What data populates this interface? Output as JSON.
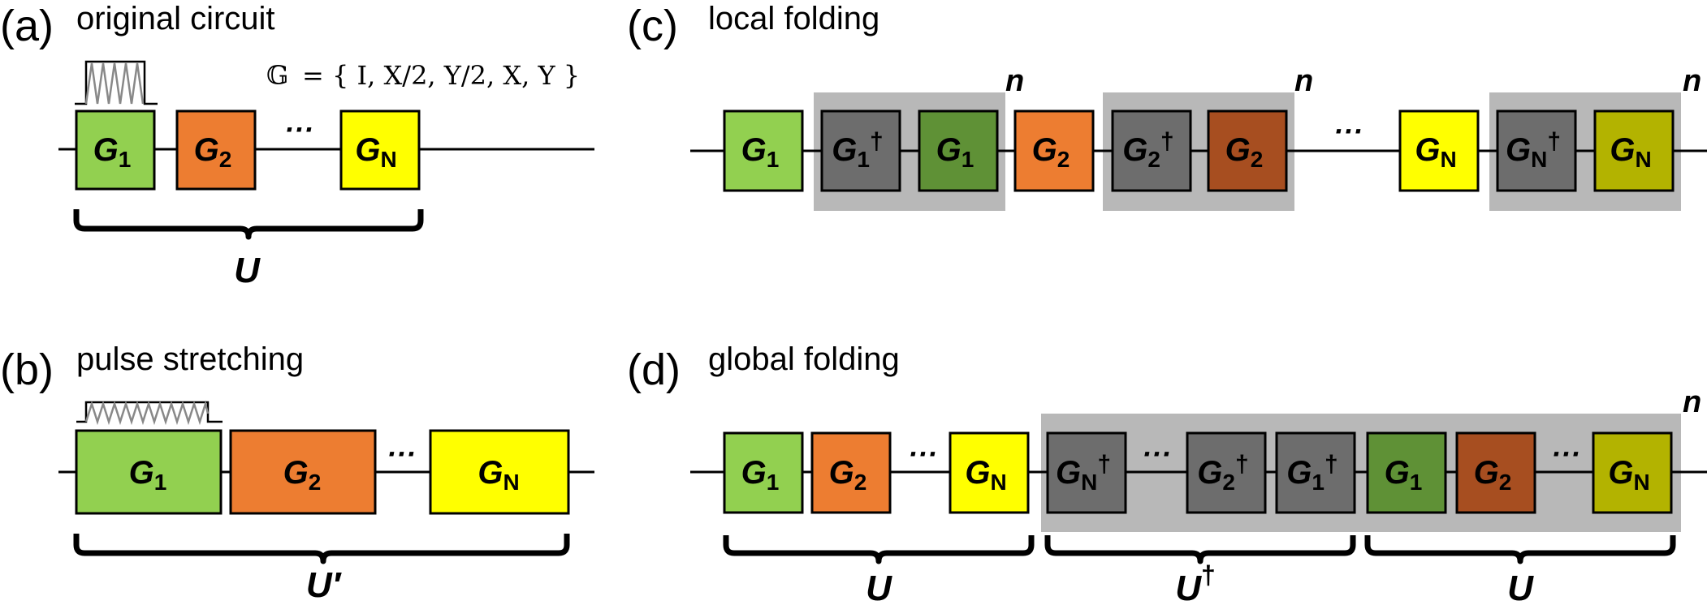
{
  "colors": {
    "g1": "#92d050",
    "g2": "#ed7d31",
    "gN": "#ffff00",
    "g1_dark": "#5f9136",
    "g2_dark": "#a74e20",
    "gN_dark": "#b3b300",
    "dagger_gate": "#6d6d6d",
    "fold_bg": "#b8b8b8",
    "pulse": "#888888"
  },
  "panels": {
    "a": {
      "tag": "(a)",
      "title": "original circuit",
      "gate_set": "= { I, X/2, Y/2, X, Y }",
      "gate_set_symbol": "𝔾",
      "brace": "U"
    },
    "b": {
      "tag": "(b)",
      "title": "pulse stretching",
      "brace": "U′"
    },
    "c": {
      "tag": "(c)",
      "title": "local folding",
      "fold_count": "n"
    },
    "d": {
      "tag": "(d)",
      "title": "global folding",
      "fold_count": "n",
      "braces": [
        "U",
        "U",
        "U"
      ],
      "dagger": "†"
    }
  },
  "gates": {
    "g1": {
      "letter": "G",
      "sub": "1"
    },
    "g2": {
      "letter": "G",
      "sub": "2"
    },
    "gN": {
      "letter": "G",
      "sub": "N"
    },
    "dagger": "†",
    "ellipsis": "···"
  }
}
